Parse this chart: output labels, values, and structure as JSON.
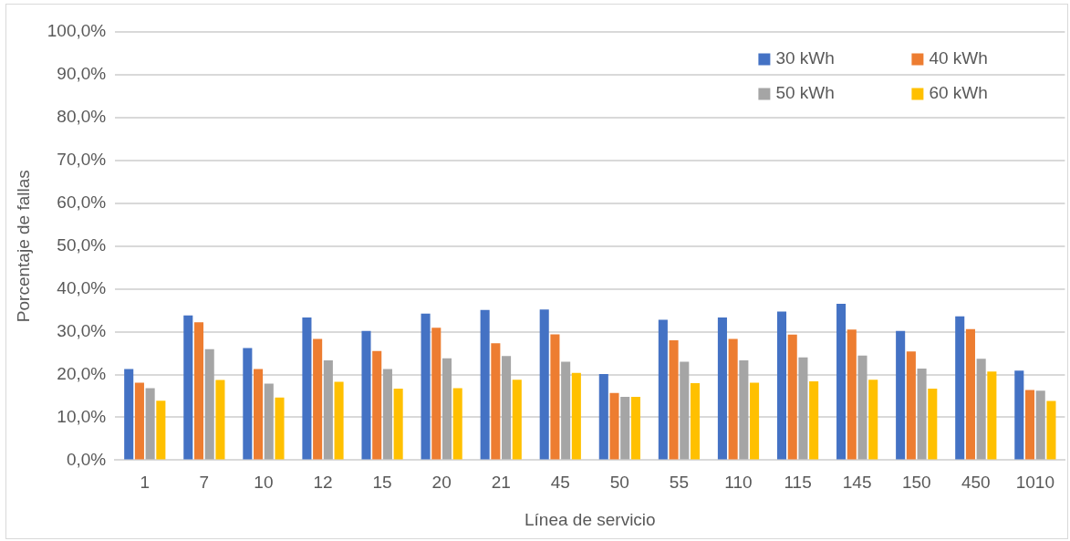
{
  "chart_data": {
    "type": "bar",
    "xlabel": "Línea de servicio",
    "ylabel": "Porcentaje de fallas",
    "categories": [
      "1",
      "7",
      "10",
      "12",
      "15",
      "20",
      "21",
      "45",
      "50",
      "55",
      "110",
      "115",
      "145",
      "150",
      "450",
      "1010"
    ],
    "series": [
      {
        "name": "30 kWh",
        "color": "#4472c4",
        "values": [
          21.3,
          33.8,
          26.2,
          33.3,
          30.2,
          34.2,
          35.1,
          35.2,
          20.1,
          32.8,
          33.3,
          34.7,
          36.5,
          30.2,
          33.6,
          20.9
        ]
      },
      {
        "name": "40 kWh",
        "color": "#ed7d31",
        "values": [
          18.1,
          32.2,
          21.3,
          28.3,
          25.5,
          30.9,
          27.3,
          29.4,
          15.7,
          28.0,
          28.3,
          29.3,
          30.5,
          25.4,
          30.6,
          16.4
        ]
      },
      {
        "name": "50 kWh",
        "color": "#a5a5a5",
        "values": [
          16.8,
          25.9,
          17.9,
          23.3,
          21.3,
          23.8,
          24.3,
          23.0,
          14.8,
          23.0,
          23.3,
          24.0,
          24.4,
          21.4,
          23.7,
          16.2
        ]
      },
      {
        "name": "60 kWh",
        "color": "#ffc000",
        "values": [
          13.9,
          18.7,
          14.6,
          18.3,
          16.7,
          16.8,
          18.8,
          20.4,
          14.8,
          18.0,
          18.1,
          18.4,
          18.8,
          16.7,
          20.7,
          13.8
        ]
      }
    ],
    "ylim": [
      0,
      100
    ],
    "yticks": [
      {
        "value": 0,
        "label": "0,0%"
      },
      {
        "value": 10,
        "label": "10,0%"
      },
      {
        "value": 20,
        "label": "20,0%"
      },
      {
        "value": 30,
        "label": "30,0%"
      },
      {
        "value": 40,
        "label": "40,0%"
      },
      {
        "value": 50,
        "label": "50,0%"
      },
      {
        "value": 60,
        "label": "60,0%"
      },
      {
        "value": 70,
        "label": "70,0%"
      },
      {
        "value": 80,
        "label": "80,0%"
      },
      {
        "value": 90,
        "label": "90,0%"
      },
      {
        "value": 100,
        "label": "100,0%"
      }
    ],
    "grid": "y",
    "legend": "top right"
  }
}
